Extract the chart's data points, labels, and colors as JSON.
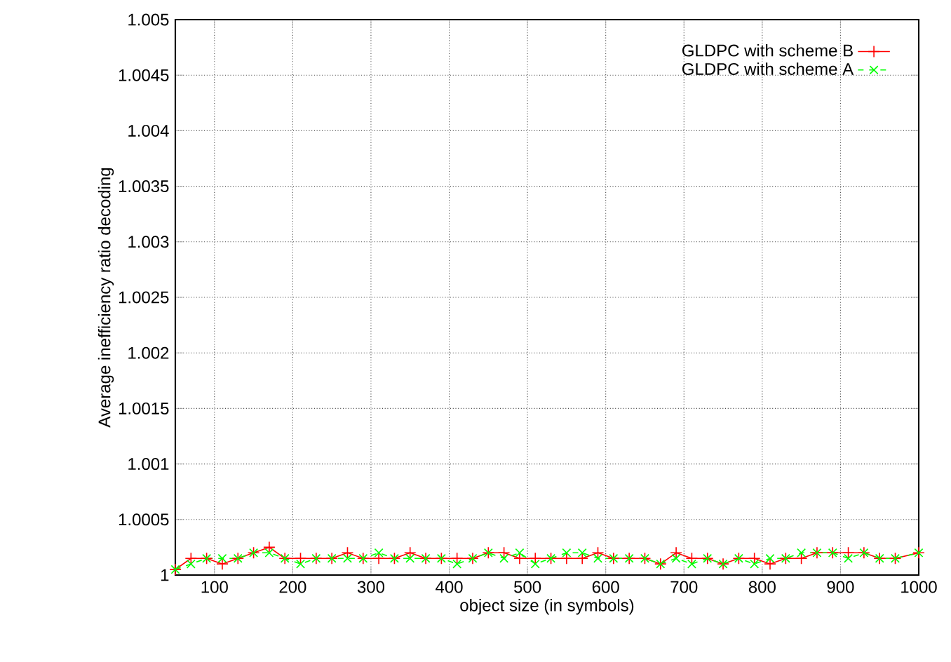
{
  "chart_data": {
    "type": "line",
    "xlabel": "object size (in symbols)",
    "ylabel": "Average inefficiency ratio decoding",
    "x": [
      50,
      70,
      90,
      110,
      130,
      150,
      170,
      190,
      210,
      230,
      250,
      270,
      290,
      310,
      330,
      350,
      370,
      390,
      410,
      430,
      450,
      470,
      490,
      510,
      530,
      550,
      570,
      590,
      610,
      630,
      650,
      670,
      690,
      710,
      730,
      750,
      770,
      790,
      810,
      830,
      850,
      870,
      890,
      910,
      930,
      950,
      970,
      1000
    ],
    "series": [
      {
        "name": "GLDPC with scheme B",
        "color": "#ff0000",
        "marker": "plus",
        "line_style": "solid",
        "values": [
          1.00005,
          1.00015,
          1.00015,
          1.0001,
          1.00015,
          1.0002,
          1.00025,
          1.00015,
          1.00015,
          1.00015,
          1.00015,
          1.0002,
          1.00015,
          1.00015,
          1.00015,
          1.0002,
          1.00015,
          1.00015,
          1.00015,
          1.00015,
          1.0002,
          1.0002,
          1.00015,
          1.00015,
          1.00015,
          1.00015,
          1.00015,
          1.0002,
          1.00015,
          1.00015,
          1.00015,
          1.0001,
          1.0002,
          1.00015,
          1.00015,
          1.0001,
          1.00015,
          1.00015,
          1.0001,
          1.00015,
          1.00015,
          1.0002,
          1.0002,
          1.0002,
          1.0002,
          1.00015,
          1.00015,
          1.0002
        ]
      },
      {
        "name": "GLDPC with scheme A",
        "color": "#00ff00",
        "marker": "cross",
        "line_style": "dashed",
        "values": [
          1.00005,
          1.0001,
          1.00015,
          1.00015,
          1.00015,
          1.0002,
          1.0002,
          1.00015,
          1.0001,
          1.00015,
          1.00015,
          1.00015,
          1.00015,
          1.0002,
          1.00015,
          1.00015,
          1.00015,
          1.00015,
          1.0001,
          1.00015,
          1.0002,
          1.00015,
          1.0002,
          1.0001,
          1.00015,
          1.0002,
          1.0002,
          1.00015,
          1.00015,
          1.00015,
          1.00015,
          1.0001,
          1.00015,
          1.0001,
          1.00015,
          1.0001,
          1.00015,
          1.0001,
          1.00015,
          1.00015,
          1.0002,
          1.0002,
          1.0002,
          1.00015,
          1.0002,
          1.00015,
          1.00015,
          1.0002
        ]
      }
    ],
    "xlim": [
      50,
      1000
    ],
    "xticks": [
      100,
      200,
      300,
      400,
      500,
      600,
      700,
      800,
      900,
      1000
    ],
    "ylim": [
      1,
      1.005
    ],
    "yticks": [
      1,
      1.0005,
      1.001,
      1.0015,
      1.002,
      1.0025,
      1.003,
      1.0035,
      1.004,
      1.0045,
      1.005
    ],
    "grid": true,
    "legend": "top right"
  }
}
